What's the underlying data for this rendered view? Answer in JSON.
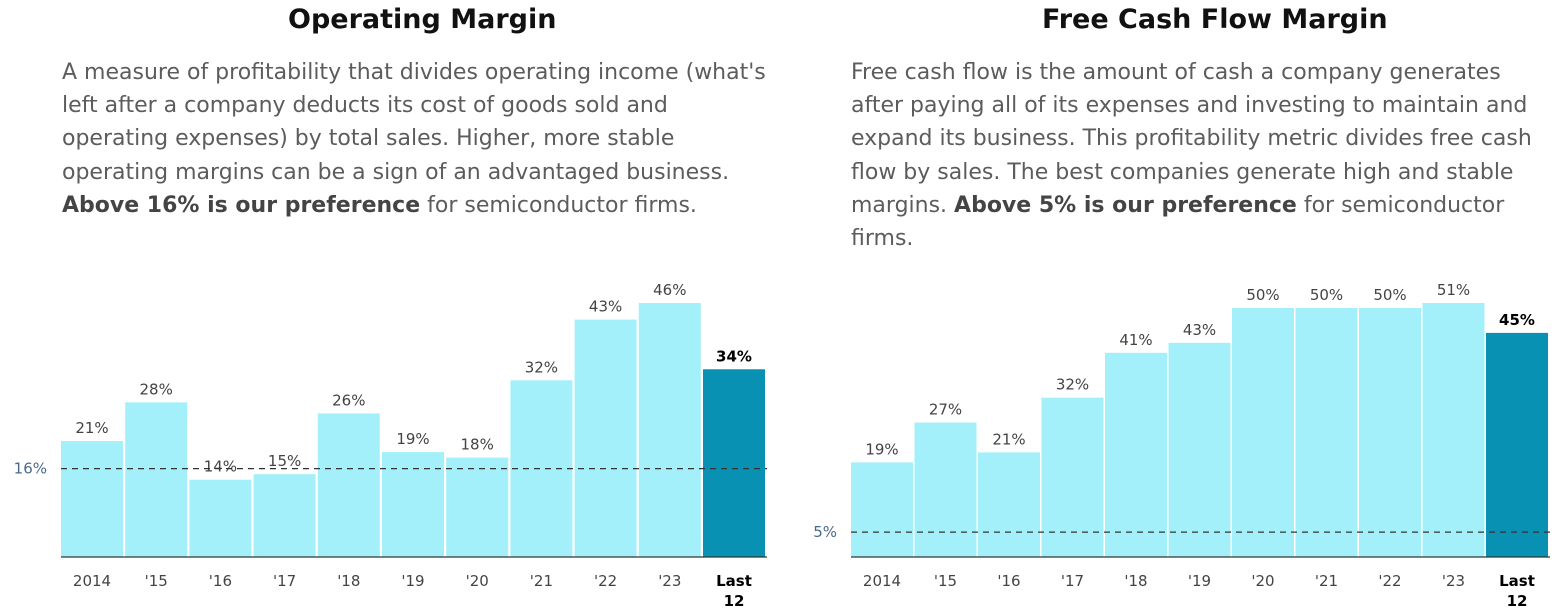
{
  "colors": {
    "bar": "#a4f0fa",
    "highlight": "#0891b2",
    "baseline": "#333333",
    "reference": "#333333"
  },
  "panels": [
    {
      "title": "Operating Margin",
      "description": {
        "line1": "A measure of profitability that divides operating income (what's",
        "line2": "left after a company deducts its cost of goods sold and",
        "line3": "operating expenses) by total sales. Higher, more stable",
        "line4": "operating margins can be a sign of an advantaged business.",
        "line5_bold": "Above 16% is our preference",
        "line5_rest": " for semiconductor firms.",
        "line6": ""
      }
    },
    {
      "title": "Free Cash Flow Margin",
      "description": {
        "line1": "Free cash flow is the amount of cash a company generates",
        "line2": "after paying all of its expenses and investing to maintain and",
        "line3": "expand its business. This profitability metric divides free cash",
        "line4": "flow by sales. The best companies generate high and stable",
        "line5_bold": "Above 5% is our preference",
        "line5_pre": "margins. ",
        "line5_rest": " for semiconductor",
        "line6": "firms."
      }
    }
  ],
  "chart_data": [
    {
      "type": "bar",
      "categories": [
        "2014",
        "'15",
        "'16",
        "'17",
        "'18",
        "'19",
        "'20",
        "'21",
        "'22",
        "'23",
        "Last 12"
      ],
      "values": [
        21,
        28,
        14,
        15,
        26,
        19,
        18,
        32,
        43,
        46,
        34
      ],
      "value_labels": [
        "21%",
        "28%",
        "14%",
        "15%",
        "26%",
        "19%",
        "18%",
        "32%",
        "43%",
        "46%",
        "34%"
      ],
      "highlight_index": 10,
      "reference_line": {
        "value": 16,
        "label": "16%"
      },
      "ylim": [
        0,
        46
      ]
    },
    {
      "type": "bar",
      "categories": [
        "2014",
        "'15",
        "'16",
        "'17",
        "'18",
        "'19",
        "'20",
        "'21",
        "'22",
        "'23",
        "Last 12"
      ],
      "values": [
        19,
        27,
        21,
        32,
        41,
        43,
        50,
        50,
        50,
        51,
        45
      ],
      "value_labels": [
        "19%",
        "27%",
        "21%",
        "32%",
        "41%",
        "43%",
        "50%",
        "50%",
        "50%",
        "51%",
        "45%"
      ],
      "highlight_index": 10,
      "reference_line": {
        "value": 5,
        "label": "5%"
      },
      "ylim": [
        0,
        51
      ]
    }
  ]
}
